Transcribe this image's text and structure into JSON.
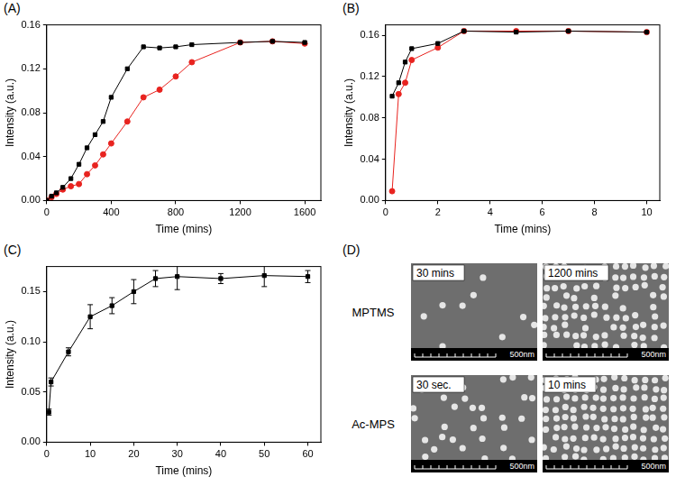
{
  "chart_data": [
    {
      "panel": "(A)",
      "type": "line",
      "x_label": "Time (mins)",
      "y_label": "Intensity (a.u.)",
      "xlim": [
        0,
        1700
      ],
      "xticks": [
        0,
        400,
        800,
        1200,
        1600
      ],
      "ylim": [
        0,
        0.16
      ],
      "yticks": [
        {
          "value": 0,
          "label": "0.00"
        },
        {
          "value": 0.04,
          "label": "0.04"
        },
        {
          "value": 0.08,
          "label": "0.08"
        },
        {
          "value": 0.12,
          "label": "0.12"
        },
        {
          "value": 0.16,
          "label": "0.16"
        }
      ],
      "grid": false,
      "series": [
        {
          "color": "#000000",
          "marker": "square",
          "line_style": "solid",
          "x": [
            0,
            30,
            60,
            100,
            150,
            200,
            250,
            300,
            350,
            400,
            500,
            600,
            700,
            800,
            900,
            1200,
            1400,
            1600
          ],
          "values": [
            0,
            0.004,
            0.007,
            0.012,
            0.02,
            0.033,
            0.048,
            0.06,
            0.072,
            0.094,
            0.12,
            0.14,
            0.139,
            0.14,
            0.142,
            0.144,
            0.145,
            0.144
          ]
        },
        {
          "color": "#e8231f",
          "marker": "circle",
          "line_style": "solid",
          "x": [
            0,
            30,
            60,
            100,
            150,
            200,
            250,
            300,
            350,
            400,
            500,
            600,
            700,
            800,
            900,
            1200,
            1400,
            1600
          ],
          "values": [
            0,
            0.003,
            0.006,
            0.01,
            0.013,
            0.015,
            0.024,
            0.032,
            0.042,
            0.052,
            0.072,
            0.094,
            0.101,
            0.113,
            0.126,
            0.144,
            0.145,
            0.143
          ]
        }
      ]
    },
    {
      "panel": "(B)",
      "type": "line",
      "x_label": "Time (mins)",
      "y_label": "Intensity (a.u.)",
      "xlim": [
        0,
        10.5
      ],
      "xticks": [
        0,
        2,
        4,
        6,
        8,
        10
      ],
      "ylim": [
        0,
        0.17
      ],
      "yticks": [
        {
          "value": 0,
          "label": "0.00"
        },
        {
          "value": 0.04,
          "label": "0.04"
        },
        {
          "value": 0.08,
          "label": "0.08"
        },
        {
          "value": 0.12,
          "label": "0.12"
        },
        {
          "value": 0.16,
          "label": "0.16"
        }
      ],
      "grid": false,
      "series": [
        {
          "color": "#000000",
          "marker": "square",
          "line_style": "solid",
          "x": [
            0.25,
            0.5,
            0.75,
            1,
            2,
            3,
            5,
            7,
            10
          ],
          "values": [
            0.101,
            0.114,
            0.134,
            0.147,
            0.152,
            0.164,
            0.163,
            0.164,
            0.163
          ]
        },
        {
          "color": "#e8231f",
          "marker": "circle",
          "line_style": "solid",
          "x": [
            0.25,
            0.5,
            0.75,
            1,
            2,
            3,
            5,
            7,
            10
          ],
          "values": [
            0.009,
            0.103,
            0.114,
            0.136,
            0.148,
            0.164,
            0.164,
            0.164,
            0.163
          ]
        }
      ]
    },
    {
      "panel": "(C)",
      "type": "line",
      "x_label": "Time (mins)",
      "y_label": "Intensity (a.u.)",
      "xlim": [
        0,
        63
      ],
      "xticks": [
        0,
        10,
        20,
        30,
        40,
        50,
        60
      ],
      "ylim": [
        0,
        0.175
      ],
      "yticks": [
        {
          "value": 0,
          "label": "0.00"
        },
        {
          "value": 0.05,
          "label": "0.05"
        },
        {
          "value": 0.1,
          "label": "0.10"
        },
        {
          "value": 0.15,
          "label": "0.15"
        }
      ],
      "grid": false,
      "series": [
        {
          "color": "#000000",
          "marker": "square",
          "line_style": "solid",
          "x": [
            0.5,
            1,
            5,
            10,
            15,
            20,
            25,
            30,
            40,
            50,
            60
          ],
          "values": [
            0.03,
            0.06,
            0.09,
            0.125,
            0.136,
            0.15,
            0.163,
            0.165,
            0.163,
            0.166,
            0.165
          ],
          "errors": [
            0.003,
            0.004,
            0.004,
            0.012,
            0.008,
            0.012,
            0.008,
            0.013,
            0.005,
            0.011,
            0.006
          ]
        }
      ]
    }
  ],
  "panel_d": {
    "panel": "(D)",
    "rows": [
      {
        "label": "MPTMS",
        "images": [
          {
            "caption": "30 mins",
            "scale_bar": "500nm"
          },
          {
            "caption": "1200 mins",
            "scale_bar": "500nm"
          }
        ]
      },
      {
        "label": "Ac-MPS",
        "images": [
          {
            "caption": "30 sec.",
            "scale_bar": "500nm"
          },
          {
            "caption": "10 mins",
            "scale_bar": "500nm"
          }
        ]
      }
    ]
  }
}
